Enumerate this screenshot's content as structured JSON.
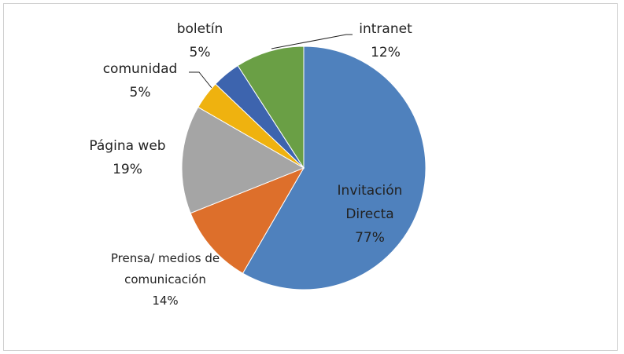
{
  "chart_data": {
    "type": "pie",
    "categories": [
      "Invitación Directa",
      "Prensa/ medios de comunicación",
      "Página web",
      "comunidad",
      "boletín",
      "intranet"
    ],
    "values": [
      77,
      14,
      19,
      5,
      5,
      12
    ],
    "value_labels": [
      "77%",
      "14%",
      "19%",
      "5%",
      "5%",
      "12%"
    ],
    "colors": [
      "#4f81bd",
      "#dd6f2b",
      "#a5a5a5",
      "#efb20f",
      "#3d64ae",
      "#6a9f45"
    ]
  }
}
